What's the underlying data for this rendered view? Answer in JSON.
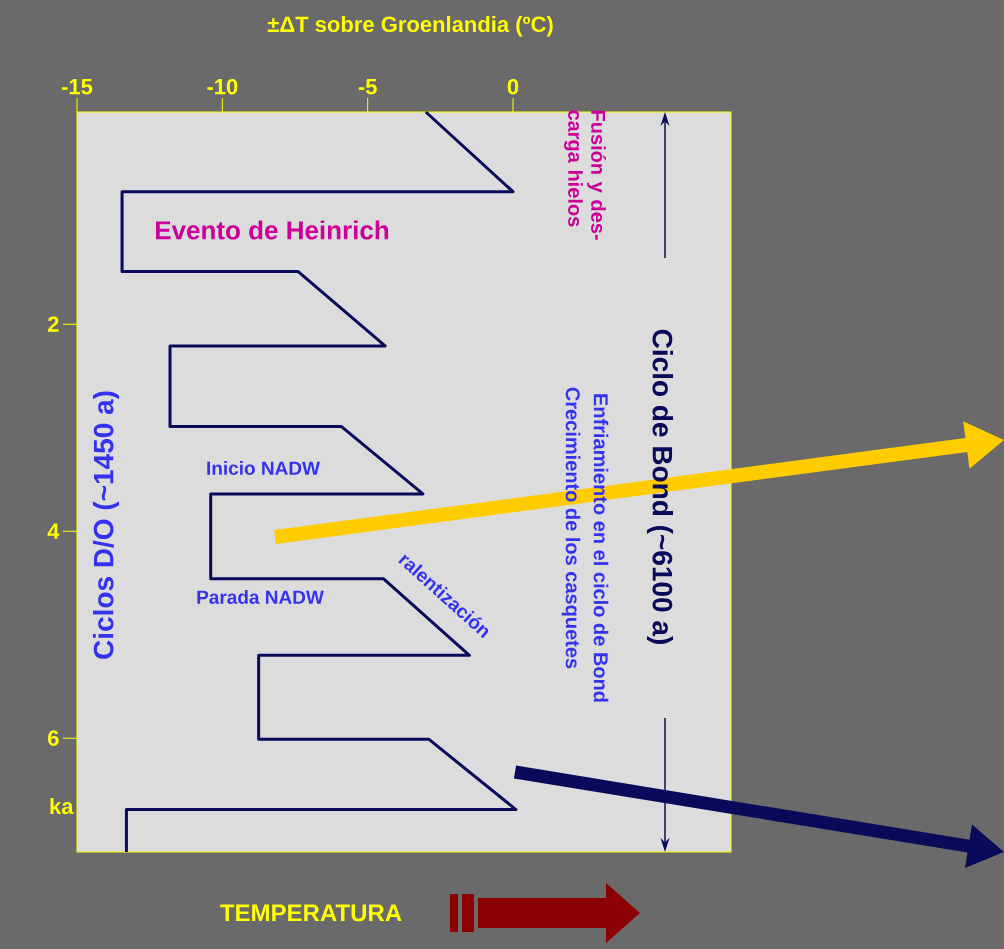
{
  "chart_data": {
    "type": "line",
    "xlabel": "±ΔT sobre Groenlandia (ºC)",
    "ylabel": "ka",
    "x": [
      -3.0,
      0,
      -13.45,
      -13.45,
      -7.4,
      -4.4,
      -11.8,
      -11.8,
      -5.9,
      -3.1,
      -10.4,
      -10.4,
      -4.45,
      -1.5,
      -8.75,
      -8.75,
      -2.9,
      0.1,
      -13.3,
      -13.3
    ],
    "values": [
      -0.05,
      0.72,
      0.72,
      1.49,
      1.49,
      2.21,
      2.21,
      2.99,
      2.99,
      3.64,
      3.64,
      4.46,
      4.46,
      5.2,
      5.2,
      6.01,
      6.01,
      6.69,
      6.69,
      7.1
    ],
    "color": "#0a0a5a",
    "xlim": [
      -15,
      7.5
    ],
    "ylim": [
      7.1,
      -0.05
    ],
    "xticks": [
      -15,
      -10,
      -5,
      0
    ],
    "yticks": [
      2,
      4,
      6
    ],
    "annotations": [
      "Evento de Heinrich",
      "Fusión y des-carga hielos",
      "Ciclos D/O (~1450 a)",
      "Inicio NADW",
      "Parada NADW",
      "ralentización",
      "Enfriamiento en el ciclo de Bond",
      "Crecimiento de los casquetes",
      "Ciclo de Bond (~6100 a)",
      "TEMPERATURA"
    ]
  }
}
